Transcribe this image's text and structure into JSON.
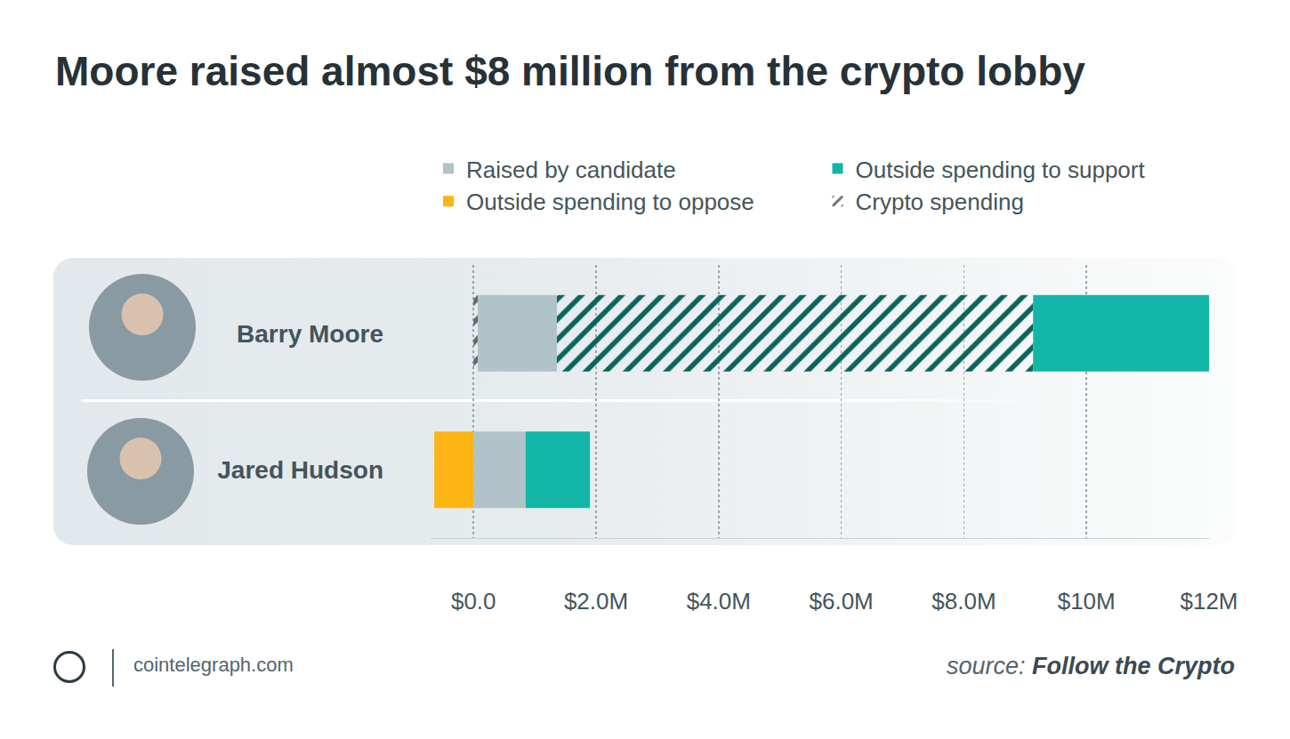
{
  "chart_data": {
    "type": "bar",
    "title": "Moore raised almost $8 million from the crypto lobby",
    "orientation": "horizontal",
    "stacked": true,
    "categories": [
      "Barry Moore",
      "Jared Hudson"
    ],
    "series": [
      {
        "name": "Crypto spending",
        "color": "#b0c3c8",
        "marker": "hatched",
        "values": [
          0.07,
          0
        ]
      },
      {
        "name": "Raised by candidate",
        "color": "#b0c3c8",
        "values": [
          1.29,
          0.85
        ]
      },
      {
        "name": "Crypto spending",
        "color": "#13b5a6",
        "marker": "hatched",
        "values": [
          7.77,
          0
        ]
      },
      {
        "name": "Outside spending to support",
        "color": "#13b5a6",
        "values": [
          2.87,
          1.05
        ]
      },
      {
        "name": "Outside spending to oppose",
        "color": "#fdb515",
        "values": [
          0,
          -0.64
        ]
      }
    ],
    "xlim": [
      -0.7,
      12
    ],
    "xticks": [
      {
        "value": 0,
        "label": "$0.0"
      },
      {
        "value": 2,
        "label": "$2.0M"
      },
      {
        "value": 4,
        "label": "$4.0M"
      },
      {
        "value": 6,
        "label": "$6.0M"
      },
      {
        "value": 8,
        "label": "$8.0M"
      },
      {
        "value": 10,
        "label": "$10M"
      },
      {
        "value": 12,
        "label": "$12M"
      }
    ],
    "grid": true,
    "legend": "top"
  },
  "footer": {
    "site": "cointelegraph.com",
    "source_label": "source:",
    "source": "Follow the Crypto"
  }
}
